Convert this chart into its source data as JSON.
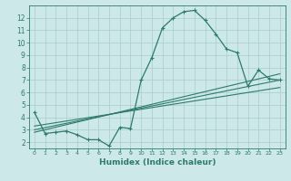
{
  "title": "",
  "xlabel": "Humidex (Indice chaleur)",
  "ylabel": "",
  "bg_color": "#cce8e8",
  "grid_color": "#aacccc",
  "line_color": "#2d7a6e",
  "xlim": [
    -0.5,
    23.5
  ],
  "ylim": [
    1.5,
    13.0
  ],
  "xticks": [
    0,
    1,
    2,
    3,
    4,
    5,
    6,
    7,
    8,
    9,
    10,
    11,
    12,
    13,
    14,
    15,
    16,
    17,
    18,
    19,
    20,
    21,
    22,
    23
  ],
  "yticks": [
    2,
    3,
    4,
    5,
    6,
    7,
    8,
    9,
    10,
    11,
    12
  ],
  "line1_x": [
    0,
    1,
    2,
    3,
    4,
    5,
    6,
    7,
    8,
    9,
    10,
    11,
    12,
    13,
    14,
    15,
    16,
    17,
    18,
    19,
    20,
    21,
    22,
    23
  ],
  "line1_y": [
    4.4,
    2.7,
    2.8,
    2.9,
    2.6,
    2.2,
    2.2,
    1.7,
    3.2,
    3.1,
    7.0,
    8.8,
    11.2,
    12.0,
    12.5,
    12.6,
    11.8,
    10.7,
    9.5,
    9.2,
    6.5,
    7.8,
    7.1,
    7.0
  ],
  "line2_x": [
    0,
    23
  ],
  "line2_y": [
    3.0,
    7.0
  ],
  "line3_x": [
    0,
    23
  ],
  "line3_y": [
    3.3,
    6.4
  ],
  "line4_x": [
    0,
    23
  ],
  "line4_y": [
    2.8,
    7.5
  ]
}
